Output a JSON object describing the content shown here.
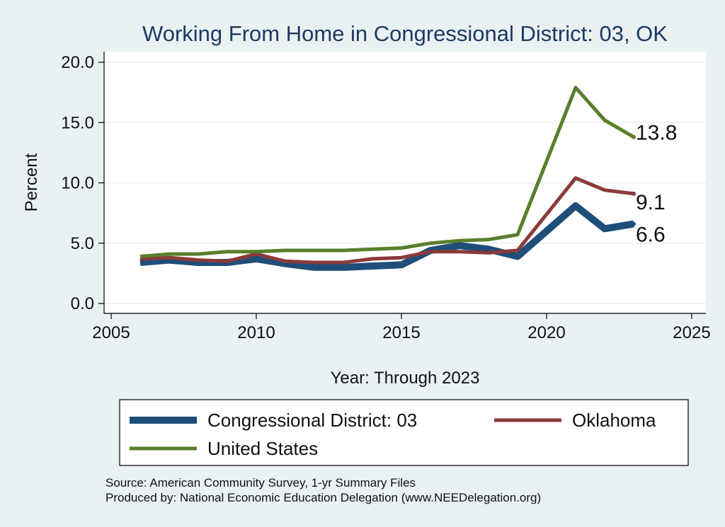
{
  "chart_data": {
    "type": "line",
    "title": "Working From Home in Congressional District: 03, OK",
    "xlabel": "Year: Through 2023",
    "ylabel": "Percent",
    "xlim": [
      2005,
      2025
    ],
    "ylim": [
      0,
      20
    ],
    "xticks": [
      2005,
      2010,
      2015,
      2020,
      2025
    ],
    "xtick_labels": [
      "2005",
      "2010",
      "2015",
      "2020",
      "2025"
    ],
    "yticks": [
      0,
      5,
      10,
      15,
      20
    ],
    "ytick_labels": [
      "0.0",
      "5.0",
      "10.0",
      "15.0",
      "20.0"
    ],
    "grid": "horizontal",
    "legend_position": "bottom",
    "x": [
      2006,
      2007,
      2008,
      2009,
      2010,
      2011,
      2012,
      2013,
      2014,
      2015,
      2016,
      2017,
      2018,
      2019,
      2021,
      2022,
      2023
    ],
    "series": [
      {
        "name": "Congressional District: 03",
        "color": "#1f4e79",
        "values": [
          3.4,
          3.6,
          3.4,
          3.4,
          3.7,
          3.3,
          3.0,
          3.0,
          3.1,
          3.2,
          4.4,
          4.8,
          4.5,
          3.9,
          8.1,
          6.2,
          6.6
        ],
        "end_label": "6.6"
      },
      {
        "name": "Oklahoma",
        "color": "#8b3a3a",
        "values": [
          3.7,
          3.8,
          3.6,
          3.5,
          4.1,
          3.5,
          3.4,
          3.4,
          3.7,
          3.8,
          4.3,
          4.3,
          4.2,
          4.4,
          10.4,
          9.4,
          9.1
        ],
        "end_label": "9.1"
      },
      {
        "name": "United States",
        "color": "#5a7f2b",
        "values": [
          3.9,
          4.1,
          4.1,
          4.3,
          4.3,
          4.4,
          4.4,
          4.4,
          4.5,
          4.6,
          5.0,
          5.2,
          5.3,
          5.7,
          17.9,
          15.2,
          13.8
        ],
        "end_label": "13.8"
      }
    ]
  },
  "source": {
    "line1": "Source: American Community Survey, 1-yr Summary Files",
    "line2": "Produced by: National Economic Education Delegation (www.NEEDelegation.org)"
  }
}
